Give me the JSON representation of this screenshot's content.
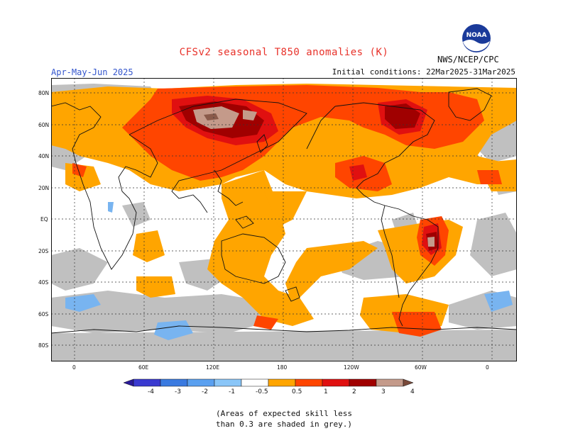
{
  "header": {
    "title": "CFSv2 seasonal T850 anomalies (K)",
    "period": "Apr-May-Jun 2025",
    "organization": "NWS/NCEP/CPC",
    "initial_conditions": "Initial conditions: 22Mar2025-31Mar2025",
    "logo_text": "NOAA"
  },
  "map": {
    "lat_labels": [
      "80N",
      "60N",
      "40N",
      "20N",
      "EQ",
      "20S",
      "40S",
      "60S",
      "80S"
    ],
    "lon_labels": [
      "0",
      "60E",
      "120E",
      "180",
      "120W",
      "60W",
      "0"
    ],
    "colors": {
      "grey_low_skill": "#c0c0c0",
      "ocean_white": "#ffffff",
      "anom_0_5_1": "#ffa500",
      "anom_1_2": "#ff4500",
      "anom_2_3": "#e01010",
      "anom_3_4": "#a00000",
      "anom_4_plus": "#c49a8a",
      "anom_max": "#8a5a4a",
      "cold_light": "#78b4f0"
    }
  },
  "colorbar": {
    "labels": [
      "-4",
      "-3",
      "-2",
      "-1",
      "-0.5",
      "0.5",
      "1",
      "2",
      "3",
      "4"
    ],
    "colors": [
      "#2a1a9a",
      "#3a3ad0",
      "#3a7ae0",
      "#5aa0f0",
      "#8ac6f8",
      "#ffffff",
      "#ffa500",
      "#ff4500",
      "#e01010",
      "#a00000",
      "#c49a8a",
      "#7a4a3a"
    ]
  },
  "note": {
    "line1": "(Areas of expected skill less",
    "line2": "than 0.3 are shaded in grey.)"
  }
}
